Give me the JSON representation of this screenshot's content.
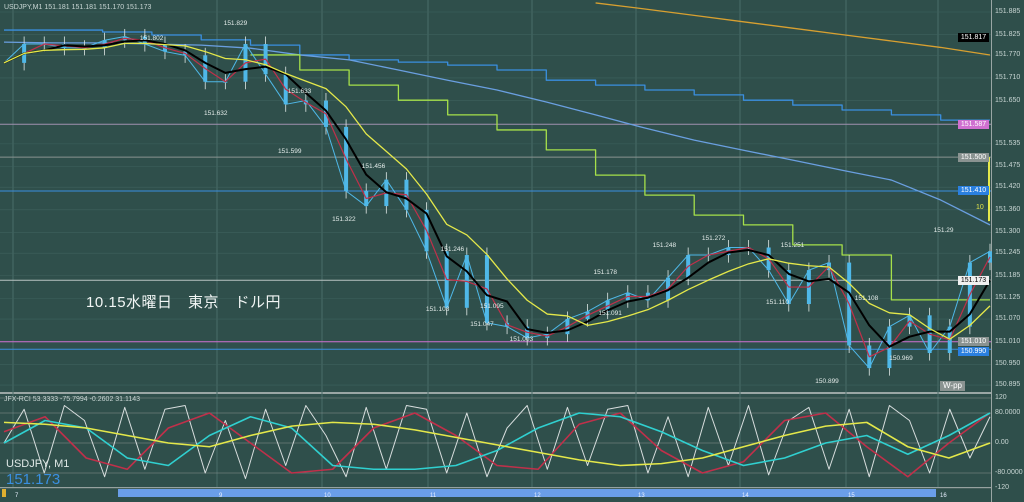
{
  "header": {
    "title": "USDJPY,M1  151.181 151.181 151.170 151.173"
  },
  "indicator": {
    "title": "JFX-RCI 53.3333 -75.7994 -0.2602 31.1143"
  },
  "annotation": "10.15水曜日　東京　ドル円",
  "symbol_label": "USDJPY, M1",
  "current_price": "151.173",
  "wpp_label": "W-pp",
  "bar_count_label": "10",
  "colors": {
    "background": "#2f4f4b",
    "candle": "#4fb8e8",
    "ma_fast": "#c0304a",
    "ma_mid": "#000000",
    "ma_slow": "#e4e84a",
    "step": "#a6e04a",
    "trend": "#6a9fe0",
    "orange": "#d8a030",
    "blue_step": "#3a8fe0"
  },
  "chart_data": [
    {
      "type": "line",
      "title": "USDJPY,M1",
      "ylim": [
        150.86,
        151.91
      ],
      "y_ticks": [
        "151.885",
        "151.825",
        "151.770",
        "151.710",
        "151.650",
        "151.535",
        "151.475",
        "151.420",
        "151.360",
        "151.300",
        "151.245",
        "151.185",
        "151.125",
        "151.070",
        "151.010",
        "150.950",
        "150.895"
      ],
      "x_ticks": [
        "7",
        "9",
        "10",
        "11",
        "12",
        "13",
        "14",
        "15",
        "16"
      ],
      "grid": true,
      "price_tags": [
        {
          "value": "151.817",
          "color": "#000000"
        },
        {
          "value": "151.587",
          "color": "#d070d0"
        },
        {
          "value": "151.500",
          "color": "#8a9391"
        },
        {
          "value": "151.410",
          "color": "#2a80e0"
        },
        {
          "value": "151.173",
          "color": "#f0f0f0"
        },
        {
          "value": "151.010",
          "color": "#8a9391"
        },
        {
          "value": "150.990",
          "color": "#2a80e0"
        }
      ],
      "close": [
        151.75,
        151.8,
        151.8,
        151.79,
        151.79,
        151.81,
        151.82,
        151.8,
        151.78,
        151.77,
        151.7,
        151.7,
        151.8,
        151.72,
        151.64,
        151.65,
        151.58,
        151.41,
        151.37,
        151.44,
        151.36,
        151.25,
        151.1,
        151.24,
        151.06,
        151.05,
        151.02,
        151.03,
        151.07,
        151.09,
        151.12,
        151.14,
        151.12,
        151.18,
        151.24,
        151.24,
        151.26,
        151.26,
        151.2,
        151.11,
        151.2,
        151.22,
        151.0,
        150.94,
        151.05,
        151.08,
        150.98,
        151.05,
        151.22,
        151.25
      ],
      "overlays": {
        "blue_step": [
          151.837,
          151.837,
          151.832,
          151.824,
          151.811,
          151.797,
          151.771,
          151.758,
          151.752,
          151.744,
          151.731,
          151.704,
          151.691,
          151.678,
          151.665,
          151.651,
          151.638,
          151.625,
          151.612,
          151.598,
          151.598
        ],
        "orange": [
          null,
          null,
          null,
          null,
          null,
          null,
          null,
          null,
          null,
          null,
          null,
          null,
          151.909,
          151.893,
          151.876,
          151.859,
          151.842,
          151.825,
          151.808,
          151.791,
          151.771
        ],
        "trend": [
          151.805,
          151.803,
          151.803,
          151.8,
          151.797,
          151.789,
          151.771,
          151.758,
          151.731,
          151.704,
          151.678,
          151.646,
          151.612,
          151.577,
          151.545,
          151.518,
          151.492,
          151.465,
          151.439,
          151.386,
          151.32
        ],
        "green_step": [
          null,
          null,
          null,
          null,
          null,
          151.771,
          151.731,
          151.691,
          151.651,
          151.612,
          151.572,
          151.519,
          151.452,
          151.399,
          151.346,
          151.32,
          151.267,
          151.24,
          151.121,
          151.121,
          151.121
        ]
      },
      "horizontal_lines": [
        151.587,
        151.5,
        151.41,
        151.173,
        151.01,
        150.99
      ],
      "labels": [
        {
          "text": "151.802",
          "price": 151.8,
          "at": 0.15
        },
        {
          "text": "151.829",
          "price": 151.84,
          "at": 0.235
        },
        {
          "text": "151.632",
          "price": 151.6,
          "at": 0.215
        },
        {
          "text": "151.633",
          "price": 151.66,
          "at": 0.3
        },
        {
          "text": "151.599",
          "price": 151.5,
          "at": 0.29
        },
        {
          "text": "151.456",
          "price": 151.46,
          "at": 0.375
        },
        {
          "text": "151.322",
          "price": 151.32,
          "at": 0.345
        },
        {
          "text": "151.246",
          "price": 151.24,
          "at": 0.455
        },
        {
          "text": "151.103",
          "price": 151.08,
          "at": 0.44
        },
        {
          "text": "151.095",
          "price": 151.09,
          "at": 0.495
        },
        {
          "text": "151.047",
          "price": 151.04,
          "at": 0.485
        },
        {
          "text": "151.003",
          "price": 151.0,
          "at": 0.525
        },
        {
          "text": "151.178",
          "price": 151.18,
          "at": 0.61
        },
        {
          "text": "151.091",
          "price": 151.07,
          "at": 0.615
        },
        {
          "text": "151.248",
          "price": 151.25,
          "at": 0.67
        },
        {
          "text": "151.272",
          "price": 151.27,
          "at": 0.72
        },
        {
          "text": "151.110",
          "price": 151.1,
          "at": 0.785
        },
        {
          "text": "151.251",
          "price": 151.25,
          "at": 0.8
        },
        {
          "text": "151.108",
          "price": 151.11,
          "at": 0.875
        },
        {
          "text": "150.969",
          "price": 150.95,
          "at": 0.91
        },
        {
          "text": "150.899",
          "price": 150.89,
          "at": 0.835
        },
        {
          "text": "151.29",
          "price": 151.29,
          "at": 0.955
        }
      ]
    },
    {
      "type": "line",
      "title": "JFX-RCI",
      "ylim": [
        -120,
        120
      ],
      "y_ticks": [
        "120",
        "80.0000",
        "0.00",
        "-80.0000",
        "-120"
      ],
      "series": [
        {
          "color": "#c0304a",
          "values": [
            30,
            70,
            -40,
            -70,
            40,
            80,
            0,
            -80,
            -70,
            40,
            80,
            20,
            -60,
            -70,
            50,
            80,
            -20,
            -80,
            -50,
            60,
            80,
            -10,
            -90,
            0,
            80
          ]
        },
        {
          "color": "#30d0d0",
          "values": [
            0,
            60,
            40,
            -40,
            -60,
            20,
            70,
            40,
            -60,
            -70,
            -70,
            -60,
            -20,
            40,
            80,
            70,
            30,
            -20,
            -60,
            -40,
            0,
            20,
            -30,
            20,
            80
          ]
        },
        {
          "color": "#e4e84a",
          "values": [
            55,
            50,
            40,
            20,
            0,
            -10,
            20,
            45,
            55,
            50,
            35,
            15,
            -5,
            -25,
            -45,
            -60,
            -55,
            -40,
            -10,
            20,
            45,
            55,
            -10,
            -40,
            0
          ]
        },
        {
          "color": "#d8dede",
          "values": [
            0,
            90,
            -80,
            100,
            60,
            -90,
            95,
            -70,
            90,
            100,
            -80,
            60,
            -95,
            90,
            -60,
            100,
            20,
            -90,
            95,
            -70,
            100,
            90,
            -80,
            80,
            -90,
            40,
            100,
            -70,
            95,
            -60,
            90,
            100,
            -80,
            70,
            -90,
            95,
            -60,
            100,
            -85,
            60,
            95,
            -70,
            90,
            -90,
            100,
            60,
            -80,
            90,
            -40,
            70
          ]
        }
      ]
    }
  ]
}
